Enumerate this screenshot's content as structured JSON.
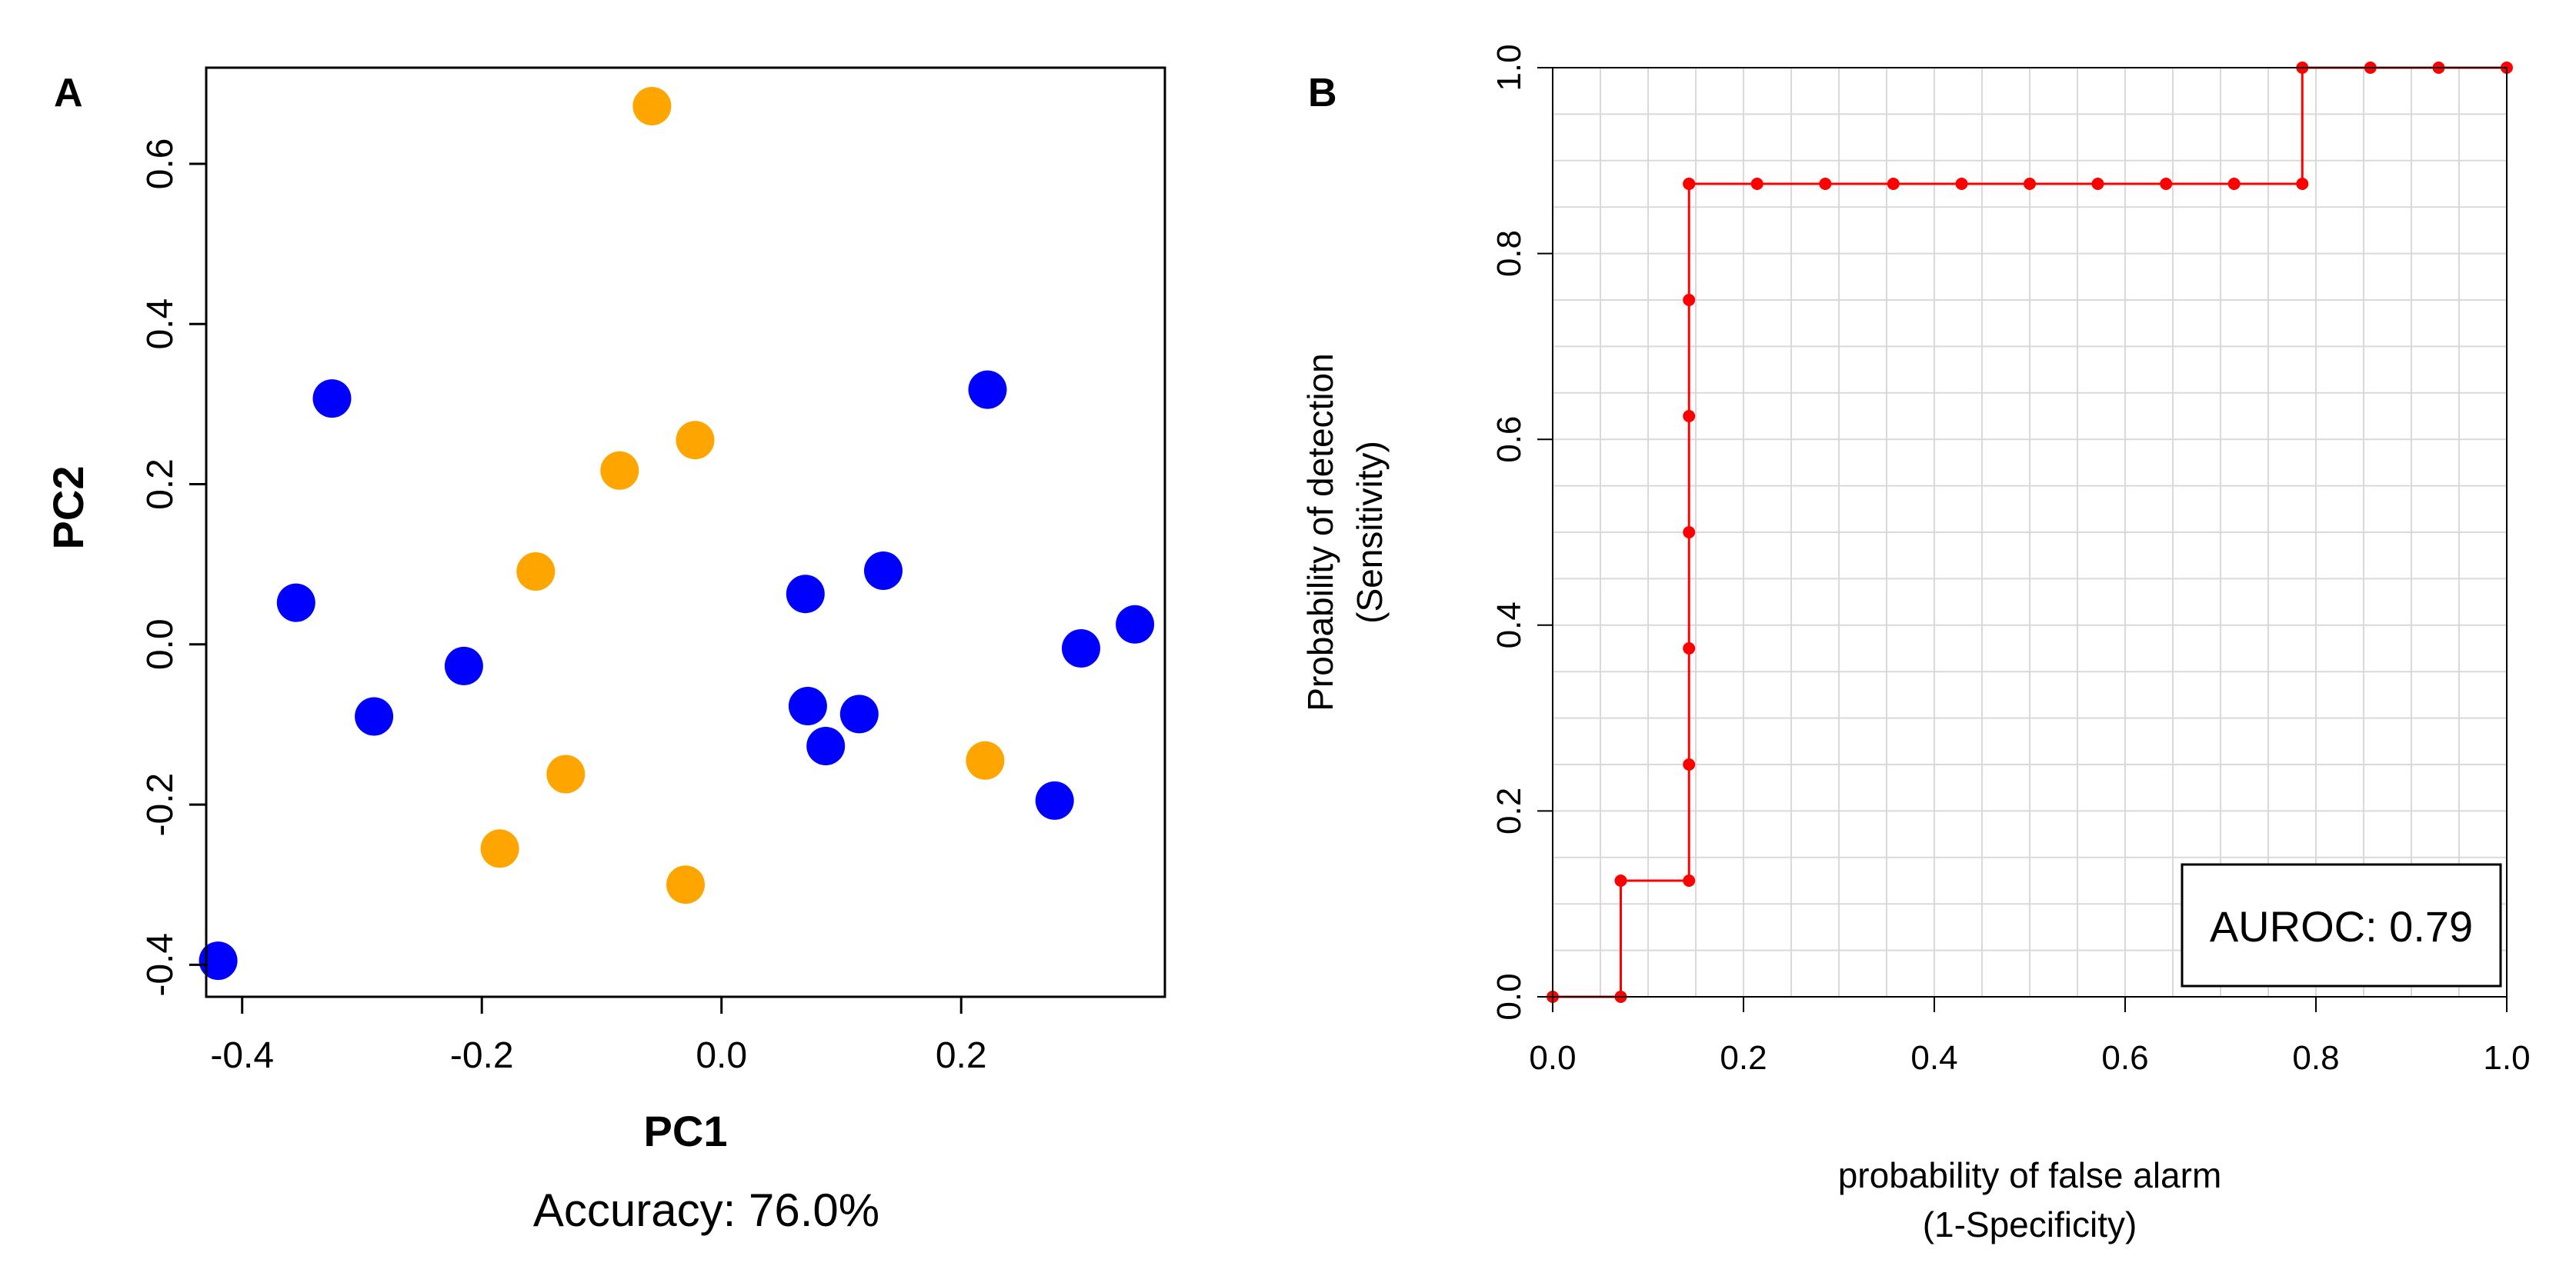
{
  "chart_data": [
    {
      "panel": "A",
      "type": "scatter",
      "xlabel": "PC1",
      "ylabel": "PC2",
      "caption": "Accuracy: 76.0%",
      "xlim": [
        -0.43,
        0.37
      ],
      "ylim": [
        -0.44,
        0.72
      ],
      "xticks": [
        -0.4,
        -0.2,
        0.0,
        0.2
      ],
      "xtick_labels": [
        "-0.4",
        "-0.2",
        "0.0",
        "0.2"
      ],
      "yticks": [
        -0.4,
        -0.2,
        0.0,
        0.2,
        0.4,
        0.6
      ],
      "ytick_labels": [
        "-0.4",
        "-0.2",
        "0.0",
        "0.2",
        "0.4",
        "0.6"
      ],
      "series": [
        {
          "name": "blue group",
          "color": "#0000ff",
          "points": [
            [
              -0.42,
              -0.395
            ],
            [
              -0.325,
              0.307
            ],
            [
              -0.355,
              0.052
            ],
            [
              -0.29,
              -0.09
            ],
            [
              -0.215,
              -0.027
            ],
            [
              0.07,
              0.063
            ],
            [
              0.072,
              -0.077
            ],
            [
              0.087,
              -0.127
            ],
            [
              0.115,
              -0.087
            ],
            [
              0.135,
              0.092
            ],
            [
              0.222,
              0.318
            ],
            [
              0.278,
              -0.195
            ],
            [
              0.3,
              -0.005
            ],
            [
              0.345,
              0.025
            ]
          ]
        },
        {
          "name": "orange group",
          "color": "#ffa500",
          "points": [
            [
              -0.058,
              0.672
            ],
            [
              -0.085,
              0.217
            ],
            [
              -0.022,
              0.255
            ],
            [
              -0.155,
              0.091
            ],
            [
              -0.13,
              -0.162
            ],
            [
              -0.185,
              -0.255
            ],
            [
              -0.03,
              -0.3
            ],
            [
              0.22,
              -0.145
            ]
          ]
        }
      ]
    },
    {
      "panel": "B",
      "type": "line",
      "xlabel": "probability of false alarm",
      "xlabel2": "(1-Specificity)",
      "ylabel": "Probability of detection",
      "ylabel2": "(Sensitivity)",
      "annotation": "AUROC: 0.79",
      "xlim": [
        0,
        1
      ],
      "ylim": [
        0,
        1
      ],
      "grid": true,
      "xticks": [
        0.0,
        0.2,
        0.4,
        0.6,
        0.8,
        1.0
      ],
      "xtick_labels": [
        "0.0",
        "0.2",
        "0.4",
        "0.6",
        "0.8",
        "1.0"
      ],
      "yticks": [
        0.0,
        0.2,
        0.4,
        0.6,
        0.8,
        1.0
      ],
      "ytick_labels": [
        "0.0",
        "0.2",
        "0.4",
        "0.6",
        "0.8",
        "1.0"
      ],
      "color": "#ff0000",
      "x": [
        0,
        0.0714,
        0.0714,
        0.1429,
        0.1429,
        0.1429,
        0.1429,
        0.1429,
        0.1429,
        0.1429,
        0.1429,
        0.2143,
        0.2857,
        0.3571,
        0.4286,
        0.5,
        0.5714,
        0.6429,
        0.7143,
        0.7857,
        0.7857,
        0.8571,
        0.9286,
        1.0
      ],
      "y": [
        0,
        0,
        0.125,
        0.125,
        0.25,
        0.375,
        0.5,
        0.625,
        0.75,
        0.875,
        0.875,
        0.875,
        0.875,
        0.875,
        0.875,
        0.875,
        0.875,
        0.875,
        0.875,
        0.875,
        1.0,
        1.0,
        1.0,
        1.0
      ]
    }
  ]
}
